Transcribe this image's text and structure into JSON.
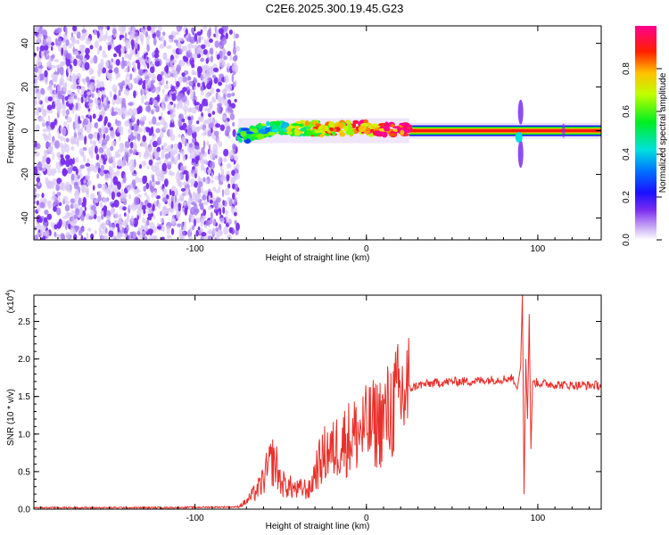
{
  "title": "C2E6.2025.300.19.45.G23",
  "chart_data": [
    {
      "type": "heatmap",
      "name": "spectrogram",
      "xlabel": "Height of straight line (km)",
      "ylabel": "Frequency (Hz)",
      "xlim": [
        -194,
        137
      ],
      "ylim": [
        -50,
        48
      ],
      "x_ticks": [
        -100,
        0,
        100
      ],
      "y_ticks": [
        -40,
        -20,
        0,
        20,
        40
      ],
      "colorbar": {
        "label": "Normalized spectral amplitude",
        "range": [
          0,
          1
        ],
        "ticks": [
          0.0,
          0.2,
          0.4,
          0.6,
          0.8
        ],
        "tick_labels": [
          "0.0",
          "0.2",
          "0.4",
          "0.6",
          "0.8"
        ]
      },
      "regions": [
        {
          "x_range": [
            -194,
            -75
          ],
          "description": "low-amplitude noise, 0.0-0.3"
        },
        {
          "x_range": [
            -75,
            25
          ],
          "center_hz": 0,
          "spread_hz": 6,
          "amplitude": "0.2-1.0 patchy"
        },
        {
          "x_range": [
            25,
            137
          ],
          "center_hz": 0,
          "amplitude": "0.95 line"
        },
        {
          "x_range": [
            88,
            92
          ],
          "spike_hz": [
            -17,
            13
          ]
        }
      ]
    },
    {
      "type": "line",
      "name": "snr",
      "xlabel": "Height of straight line (km)",
      "ylabel": "SNR (10 * v/v)",
      "y_multiplier": "(x10",
      "y_multiplier_exp": "4",
      "y_multiplier_close": ")",
      "xlim": [
        -194,
        137
      ],
      "ylim": [
        0,
        2.85
      ],
      "x_ticks": [
        -100,
        0,
        100
      ],
      "y_ticks": [
        0.0,
        0.5,
        1.0,
        1.5,
        2.0,
        2.5
      ],
      "y_tick_labels": [
        "0.0",
        "0.5",
        "1.0",
        "1.5",
        "2.0",
        "2.5"
      ],
      "series": [
        {
          "name": "SNR",
          "color": "#e8302a",
          "x": [
            -194,
            -120,
            -75,
            -70,
            -66,
            -62,
            -58,
            -55,
            -52,
            -50,
            -45,
            -40,
            -37,
            -33,
            -30,
            -25,
            -22,
            -20,
            -17,
            -14,
            -10,
            -6,
            -2,
            2,
            6,
            10,
            15,
            20,
            25,
            30,
            40,
            50,
            60,
            70,
            80,
            85,
            88,
            90,
            91,
            92,
            93,
            94,
            95,
            96,
            97,
            100,
            110,
            120,
            130,
            137
          ],
          "y": [
            0.02,
            0.02,
            0.03,
            0.1,
            0.2,
            0.3,
            0.5,
            0.65,
            0.55,
            0.35,
            0.3,
            0.25,
            0.28,
            0.25,
            0.5,
            0.7,
            0.8,
            0.75,
            0.85,
            0.9,
            0.95,
            1.0,
            1.05,
            1.1,
            1.15,
            1.2,
            1.35,
            1.5,
            1.6,
            1.65,
            1.68,
            1.7,
            1.7,
            1.72,
            1.73,
            1.75,
            1.6,
            1.9,
            2.85,
            0.2,
            2.0,
            1.2,
            2.6,
            0.8,
            1.7,
            1.68,
            1.66,
            1.65,
            1.65,
            1.65
          ]
        }
      ]
    }
  ],
  "colors": {
    "snr_line": "#e8302a",
    "noise_dots": "#7a2df0",
    "axis": "#000000"
  }
}
